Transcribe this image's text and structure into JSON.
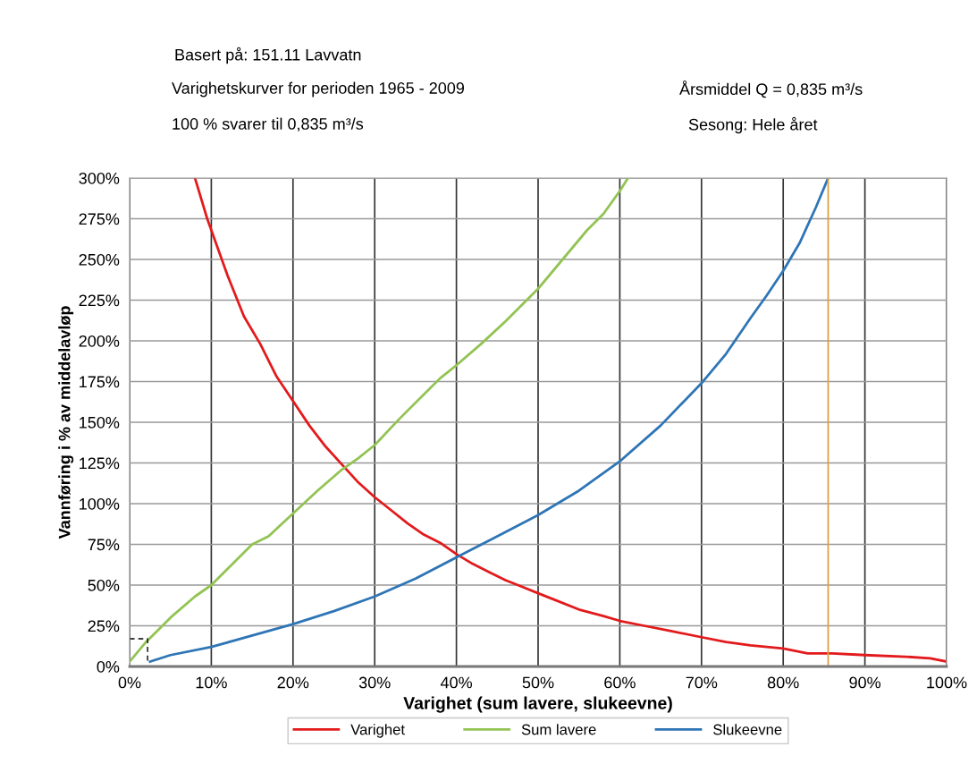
{
  "chart_data": {
    "type": "line",
    "xlabel": "Varighet (sum lavere, slukeevne)",
    "ylabel": "Vannføring i % av middelavløp",
    "annotations": [
      "Basert på: 151.11 Lavvatn",
      "Varighetskurver for perioden 1965 - 2009",
      "100 % svarer til 0,835 m³/s",
      "Årsmiddel Q = 0,835 m³/s",
      "Sesong: Hele året"
    ],
    "series": [
      {
        "name": "Varighet",
        "color": "#e31a1c",
        "x": [
          8,
          9.5,
          12,
          14,
          16,
          18,
          20,
          22,
          24,
          26,
          28,
          30,
          32,
          34,
          36,
          38,
          40,
          42,
          44,
          46,
          48,
          50,
          52,
          55,
          58,
          60,
          63,
          66,
          70,
          73,
          76,
          80,
          83,
          86,
          90,
          95,
          98,
          100
        ],
        "values": [
          300,
          275,
          240,
          215,
          198,
          178,
          163,
          148,
          135,
          124,
          113,
          104,
          96,
          88,
          81,
          76,
          69,
          63,
          58,
          53,
          49,
          45,
          41,
          35,
          31,
          28,
          25,
          22,
          18,
          15,
          13,
          11,
          8,
          8,
          7,
          6,
          5,
          3
        ]
      },
      {
        "name": "Sum lavere",
        "color": "#92c353",
        "x": [
          0,
          2,
          5,
          8,
          10,
          12,
          15,
          17,
          20,
          23,
          26,
          28,
          30,
          33,
          36,
          38,
          40,
          43,
          46,
          48,
          50,
          53,
          56,
          58,
          60,
          61
        ],
        "values": [
          3,
          15,
          30,
          43,
          50,
          60,
          75,
          80,
          94,
          108,
          121,
          128,
          136,
          152,
          167,
          177,
          185,
          198,
          212,
          222,
          232,
          250,
          268,
          278,
          292,
          300
        ]
      },
      {
        "name": "Slukeevne",
        "color": "#2e75b6",
        "x": [
          2.5,
          5,
          10,
          15,
          20,
          25,
          30,
          35,
          40,
          45,
          50,
          55,
          60,
          65,
          70,
          73,
          76,
          78,
          80,
          82,
          84,
          85.5
        ],
        "values": [
          3,
          7,
          12,
          19,
          26,
          34,
          43,
          54,
          67,
          80,
          93,
          108,
          126,
          148,
          174,
          192,
          214,
          228,
          243,
          260,
          282,
          300
        ]
      },
      {
        "color": "#000000",
        "line_style": "dashed",
        "x": [
          0,
          2.2,
          2.2
        ],
        "values": [
          17,
          17,
          3
        ]
      }
    ],
    "ref_lines": [
      {
        "axis": "x",
        "value": 85.5,
        "color": "#e0a040"
      }
    ],
    "xlim": [
      0,
      100
    ],
    "xticks": [
      {
        "value": 0,
        "label": "0%"
      },
      {
        "value": 10,
        "label": "10%"
      },
      {
        "value": 20,
        "label": "20%"
      },
      {
        "value": 30,
        "label": "30%"
      },
      {
        "value": 40,
        "label": "40%"
      },
      {
        "value": 50,
        "label": "50%"
      },
      {
        "value": 60,
        "label": "60%"
      },
      {
        "value": 70,
        "label": "70%"
      },
      {
        "value": 80,
        "label": "80%"
      },
      {
        "value": 90,
        "label": "90%"
      },
      {
        "value": 100,
        "label": "100%"
      }
    ],
    "ylim": [
      0,
      300
    ],
    "yticks": [
      {
        "value": 0,
        "label": "0%"
      },
      {
        "value": 25,
        "label": "25%"
      },
      {
        "value": 50,
        "label": "50%"
      },
      {
        "value": 75,
        "label": "75%"
      },
      {
        "value": 100,
        "label": "100%"
      },
      {
        "value": 125,
        "label": "125%"
      },
      {
        "value": 150,
        "label": "150%"
      },
      {
        "value": 175,
        "label": "175%"
      },
      {
        "value": 200,
        "label": "200%"
      },
      {
        "value": 225,
        "label": "225%"
      },
      {
        "value": 250,
        "label": "250%"
      },
      {
        "value": 275,
        "label": "275%"
      },
      {
        "value": 300,
        "label": "300%"
      }
    ],
    "grid": true,
    "legend": "bottom",
    "marker": "none",
    "line_style": "solid"
  }
}
